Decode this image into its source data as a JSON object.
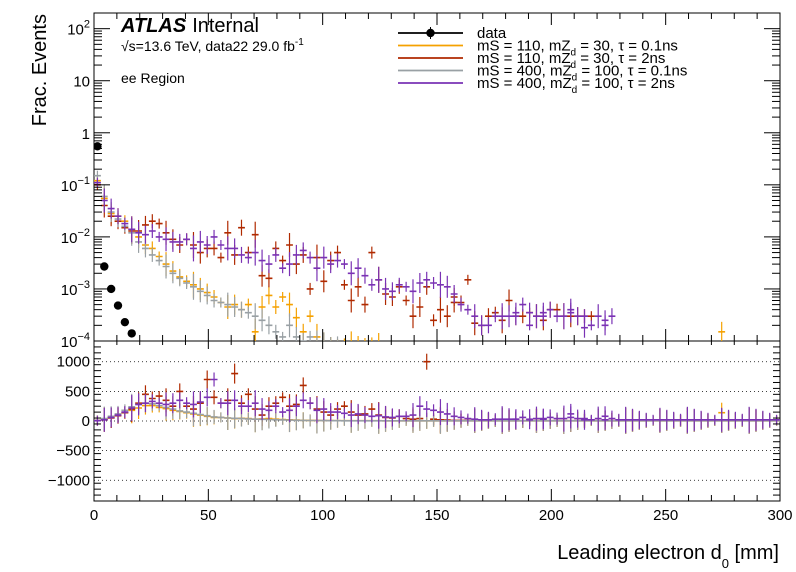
{
  "header": {
    "experiment": "ATLAS",
    "status": "Internal",
    "energy_line": "√s=13.6 TeV, data22 29.0 fb",
    "energy_line_sup": "-1",
    "region": "ee Region"
  },
  "chart_data": [
    {
      "panel": "top",
      "type": "line",
      "ylabel": "Frac. Events",
      "y_scale": "log",
      "ylim": [
        0.0001,
        200
      ],
      "xlim": [
        0,
        300
      ],
      "ytick_labels": [
        {
          "base": "10",
          "exp": "2"
        },
        {
          "base": "10",
          "exp": ""
        },
        {
          "base": "1",
          "exp": ""
        },
        {
          "base": "10",
          "exp": "−1"
        },
        {
          "base": "10",
          "exp": "−2"
        },
        {
          "base": "10",
          "exp": "−3"
        },
        {
          "base": "10",
          "exp": "−4"
        }
      ],
      "legend": {
        "placement": "top-right",
        "entries": [
          {
            "key": "data",
            "label": "data",
            "sub": "",
            "rest": "",
            "marker": "circle",
            "color": "#000000"
          },
          {
            "key": "s1",
            "label": "mS = 110, mZ",
            "sub": "d",
            "rest": " = 30, τ = 0.1ns",
            "marker": "line",
            "color": "#f5a100"
          },
          {
            "key": "s2",
            "label": "mS = 110, mZ",
            "sub": "d",
            "rest": " = 30, τ = 2ns",
            "marker": "line",
            "color": "#b02a00"
          },
          {
            "key": "s3",
            "label": "mS = 400, mZ",
            "sub": "d",
            "rest": " = 100, τ = 0.1ns",
            "marker": "line",
            "color": "#99a0a4"
          },
          {
            "key": "s4",
            "label": "mS = 400, mZ",
            "sub": "d",
            "rest": " = 100, τ = 2ns",
            "marker": "line",
            "color": "#7a32b4"
          }
        ]
      },
      "data_points": [
        {
          "x": 1.5,
          "y": 0.55
        },
        {
          "x": 4.5,
          "y": 0.0027
        },
        {
          "x": 7.5,
          "y": 0.001
        },
        {
          "x": 10.5,
          "y": 0.00048
        },
        {
          "x": 13.5,
          "y": 0.00023
        },
        {
          "x": 16.5,
          "y": 0.00014
        }
      ],
      "series": [
        {
          "key": "s1",
          "name": "mS = 110, mZd = 30, τ = 0.1ns",
          "color": "#f5a100",
          "bin_width": 3,
          "values": [
            0.12,
            0.055,
            0.028,
            0.025,
            0.02,
            0.014,
            0.01,
            0.007,
            0.006,
            0.0042,
            0.003,
            0.0022,
            0.0017,
            0.0014,
            0.0012,
            0.001,
            0.00085,
            0.0007,
            0.00055,
            0.00045,
            0.0005,
            0.0004,
            0.0005,
            0.00015,
            0.00045,
            0.00075,
            0.00045,
            0.0007,
            0.0005,
            0.00028,
            0.00015,
            0.0003,
            0.00012,
            9e-05,
            8e-05,
            8e-05,
            9e-05,
            9e-05,
            8e-05,
            8e-05,
            9e-05,
            8e-05
          ],
          "tail": [
            {
              "x": 274.5,
              "y": 0.00015
            }
          ]
        },
        {
          "key": "s2",
          "name": "mS = 110, mZd = 30, τ = 2ns",
          "color": "#b02a00",
          "bin_width": 3,
          "values": [
            0.1,
            0.04,
            0.025,
            0.02,
            0.015,
            0.013,
            0.013,
            0.017,
            0.02,
            0.018,
            0.012,
            0.009,
            0.007,
            0.009,
            0.007,
            0.005,
            0.006,
            0.006,
            0.004,
            0.012,
            0.0045,
            0.015,
            0.005,
            0.011,
            0.0018,
            0.0016,
            0.006,
            0.0035,
            0.007,
            0.003,
            0.0045,
            0.001,
            0.004,
            0.0014,
            0.0035,
            0.005,
            0.0012,
            0.0006,
            0.0011,
            0.0005,
            0.005,
            0.0015,
            0.0008,
            0.0007,
            0.0011,
            0.0006,
            0.0003,
            0.00045,
            0.0011,
            0.00025,
            0.0004,
            0.0003,
            0.0007,
            0.00055,
            0.0015,
            0.00022,
            0.0002,
            0.0003,
            0.00035,
            0.00025,
            0.0006,
            0.0003,
            0.0003,
            0.00035,
            0.0003,
            0.00025,
            0.0004,
            0.0004,
            0.0003,
            0.0003,
            0.0003,
            0.0003,
            0.0003
          ],
          "tail": [
            {
              "x": 157.5,
              "y": 0.00055
            }
          ]
        },
        {
          "key": "s3",
          "name": "mS = 400, mZd = 100, τ = 0.1ns",
          "color": "#99a0a4",
          "bin_width": 3,
          "values": [
            0.15,
            0.06,
            0.03,
            0.022,
            0.016,
            0.012,
            0.008,
            0.006,
            0.0045,
            0.0035,
            0.0027,
            0.002,
            0.0016,
            0.0013,
            0.0011,
            0.0009,
            0.00075,
            0.0006,
            0.00055,
            0.0005,
            0.00045,
            0.0004,
            0.00035,
            0.0003,
            0.00025,
            0.0002,
            0.00015,
            0.00012,
            0.0002,
            0.00012,
            0.0001,
            0.00012,
            9e-05,
            9e-05,
            8e-05,
            9e-05
          ],
          "tail": []
        },
        {
          "key": "s4",
          "name": "mS = 400, mZd = 100, τ = 2ns",
          "color": "#7a32b4",
          "bin_width": 3,
          "values": [
            0.11,
            0.05,
            0.035,
            0.025,
            0.018,
            0.014,
            0.012,
            0.011,
            0.013,
            0.01,
            0.009,
            0.008,
            0.008,
            0.009,
            0.006,
            0.008,
            0.007,
            0.01,
            0.007,
            0.006,
            0.006,
            0.0045,
            0.004,
            0.005,
            0.0035,
            0.003,
            0.0045,
            0.0025,
            0.003,
            0.0045,
            0.0055,
            0.004,
            0.0025,
            0.004,
            0.003,
            0.0035,
            0.003,
            0.002,
            0.0025,
            0.0018,
            0.0012,
            0.0015,
            0.001,
            0.0009,
            0.0012,
            0.0011,
            0.0009,
            0.0013,
            0.0015,
            0.0013,
            0.0012,
            0.0011,
            0.0008,
            0.0005,
            0.0004,
            0.0003,
            0.0002,
            0.0002,
            0.0003,
            0.0003,
            0.0003,
            0.0003,
            0.0005,
            0.0002,
            0.0003,
            0.0003,
            0.0004,
            0.0003,
            0.0003,
            0.0004,
            0.0003,
            0.0003,
            0.0002,
            0.0003,
            0.0002,
            0.0003
          ],
          "tail": [
            {
              "x": 184.5,
              "y": 0.00035
            },
            {
              "x": 190.5,
              "y": 0.00035
            },
            {
              "x": 196.5,
              "y": 0.00035
            },
            {
              "x": 208.5,
              "y": 0.00035
            },
            {
              "x": 214.5,
              "y": 0.00018
            },
            {
              "x": 223.5,
              "y": 0.00025
            }
          ]
        }
      ]
    },
    {
      "panel": "bottom",
      "type": "line",
      "xlabel": "Leading electron d",
      "xlabel_sub": "0",
      "xlabel_unit": " [mm]",
      "xlim": [
        0,
        300
      ],
      "ylim": [
        -1350,
        1350
      ],
      "xtick_labels": [
        "0",
        "50",
        "100",
        "150",
        "200",
        "250",
        "300"
      ],
      "ytick_labels": [
        "1000",
        "500",
        "0",
        "−500",
        "−1000"
      ],
      "ytick_values": [
        1000,
        500,
        0,
        -500,
        -1000
      ],
      "grid": "horizontal dotted",
      "series": [
        {
          "key": "s1",
          "color": "#f5a100",
          "bin_width": 3,
          "values": [
            10,
            30,
            60,
            100,
            140,
            180,
            220,
            260,
            260,
            230,
            210,
            180,
            160,
            140,
            120,
            100,
            80,
            60,
            60,
            50,
            40,
            45,
            40,
            30,
            35,
            40,
            30,
            25,
            20,
            15,
            12,
            10,
            10,
            8,
            6,
            5,
            5,
            5,
            5,
            5,
            5,
            5,
            4,
            4,
            4,
            4,
            3,
            3,
            3,
            3,
            3,
            3,
            3,
            3,
            3,
            3,
            3,
            3,
            3,
            3,
            3,
            3,
            3,
            3,
            3,
            3,
            3,
            3,
            3,
            3,
            3,
            3,
            3,
            3,
            3,
            3,
            3,
            3,
            3,
            3,
            3,
            3,
            3,
            3,
            3,
            3,
            3,
            3,
            3,
            3,
            3,
            3,
            3,
            3,
            3,
            3,
            3,
            3,
            3,
            3
          ],
          "tail": [
            {
              "x": 274.5,
              "y": 140
            }
          ]
        },
        {
          "key": "s2",
          "color": "#b02a00",
          "bin_width": 3,
          "values": [
            5,
            20,
            50,
            90,
            140,
            200,
            300,
            450,
            380,
            420,
            350,
            250,
            500,
            250,
            200,
            300,
            700,
            400,
            300,
            350,
            800,
            300,
            450,
            200,
            100,
            250,
            300,
            400,
            250,
            280,
            600,
            300,
            200,
            150,
            100,
            200,
            250,
            150,
            100,
            120,
            200,
            100,
            60,
            50,
            80,
            40,
            30,
            40,
            1000,
            30,
            20,
            15,
            10,
            10,
            8,
            5,
            5,
            5,
            5,
            5,
            5,
            5,
            5,
            5,
            5,
            5,
            5,
            5,
            5,
            5,
            5,
            5,
            5,
            5,
            5,
            5,
            5,
            5,
            5,
            5,
            5,
            5,
            5,
            5,
            5,
            5,
            5,
            5,
            5,
            5,
            5,
            5,
            5,
            5,
            5,
            5,
            5,
            5,
            5,
            5
          ],
          "tail": []
        },
        {
          "key": "s3",
          "color": "#99a0a4",
          "bin_width": 3,
          "values": [
            10,
            40,
            80,
            120,
            180,
            240,
            280,
            300,
            290,
            260,
            230,
            200,
            170,
            150,
            130,
            110,
            90,
            70,
            60,
            50,
            45,
            40,
            35,
            30,
            28,
            25,
            20,
            18,
            15,
            12,
            10,
            8,
            8,
            6,
            5,
            5,
            4,
            4,
            4,
            4,
            3,
            3,
            3,
            3,
            3,
            3,
            3,
            3,
            3,
            3,
            3,
            3,
            3,
            3,
            3,
            3,
            3,
            3,
            3,
            3,
            3,
            3,
            3,
            3,
            3,
            3,
            3,
            3,
            3,
            3,
            3,
            3,
            3,
            3,
            3,
            3,
            3,
            3,
            3,
            3,
            3,
            3,
            3,
            3,
            3,
            3,
            3,
            3,
            3,
            3,
            3,
            3,
            3,
            3,
            3,
            3,
            3,
            3,
            3,
            3
          ],
          "tail": []
        },
        {
          "key": "s4",
          "color": "#7a32b4",
          "bin_width": 3,
          "values": [
            5,
            20,
            60,
            100,
            150,
            220,
            280,
            300,
            330,
            300,
            280,
            300,
            350,
            300,
            280,
            320,
            400,
            700,
            300,
            300,
            350,
            250,
            250,
            300,
            200,
            180,
            250,
            150,
            180,
            250,
            350,
            300,
            180,
            200,
            150,
            150,
            130,
            100,
            120,
            100,
            80,
            90,
            70,
            60,
            80,
            80,
            100,
            250,
            200,
            180,
            150,
            120,
            80,
            60,
            40,
            30,
            20,
            20,
            30,
            30,
            30,
            30,
            60,
            20,
            40,
            40,
            60,
            40,
            40,
            60,
            40,
            40,
            20,
            40,
            20,
            40,
            20,
            20,
            20,
            20,
            20,
            20,
            20,
            20,
            20,
            20,
            20,
            20,
            20,
            20,
            20,
            20,
            20,
            20,
            20,
            20,
            20,
            20,
            20,
            20
          ],
          "tail": [
            {
              "x": 184.5,
              "y": 30
            },
            {
              "x": 190.5,
              "y": 30
            },
            {
              "x": 196.5,
              "y": 30
            },
            {
              "x": 208.5,
              "y": 120
            },
            {
              "x": 214.5,
              "y": 20
            },
            {
              "x": 223.5,
              "y": 80
            }
          ]
        }
      ]
    }
  ]
}
